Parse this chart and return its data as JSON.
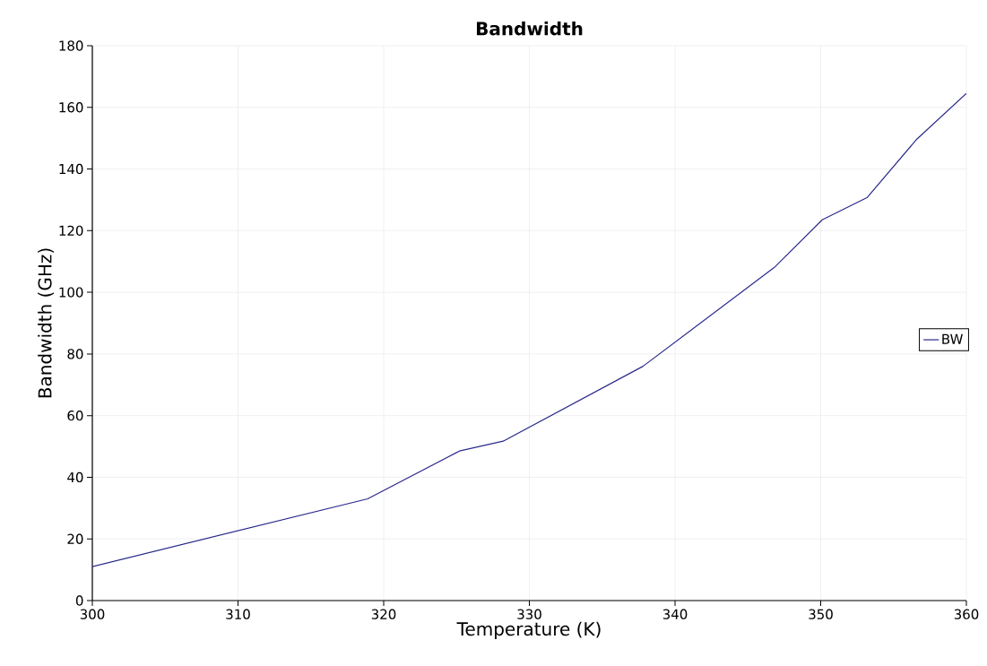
{
  "chart_data": {
    "type": "line",
    "title": "Bandwidth",
    "xlabel": "Temperature (K)",
    "ylabel": "Bandwidth (GHz)",
    "x": [
      300,
      318.9,
      325.2,
      328.2,
      337.8,
      346.8,
      350.1,
      353.2,
      356.6,
      360
    ],
    "series": [
      {
        "name": "BW",
        "color": "#2a2a8c",
        "values": [
          11,
          33,
          48.5,
          51.7,
          76,
          108,
          123.5,
          130.8,
          149.7,
          164.5
        ]
      }
    ],
    "xlim": [
      300,
      360
    ],
    "xticks": [
      300,
      310,
      320,
      330,
      340,
      350,
      360
    ],
    "ylim": [
      0,
      180
    ],
    "yticks": [
      0,
      20,
      40,
      60,
      80,
      100,
      120,
      140,
      160,
      180
    ],
    "grid": true,
    "legend": "right",
    "marker": "none",
    "line_style": "solid"
  }
}
